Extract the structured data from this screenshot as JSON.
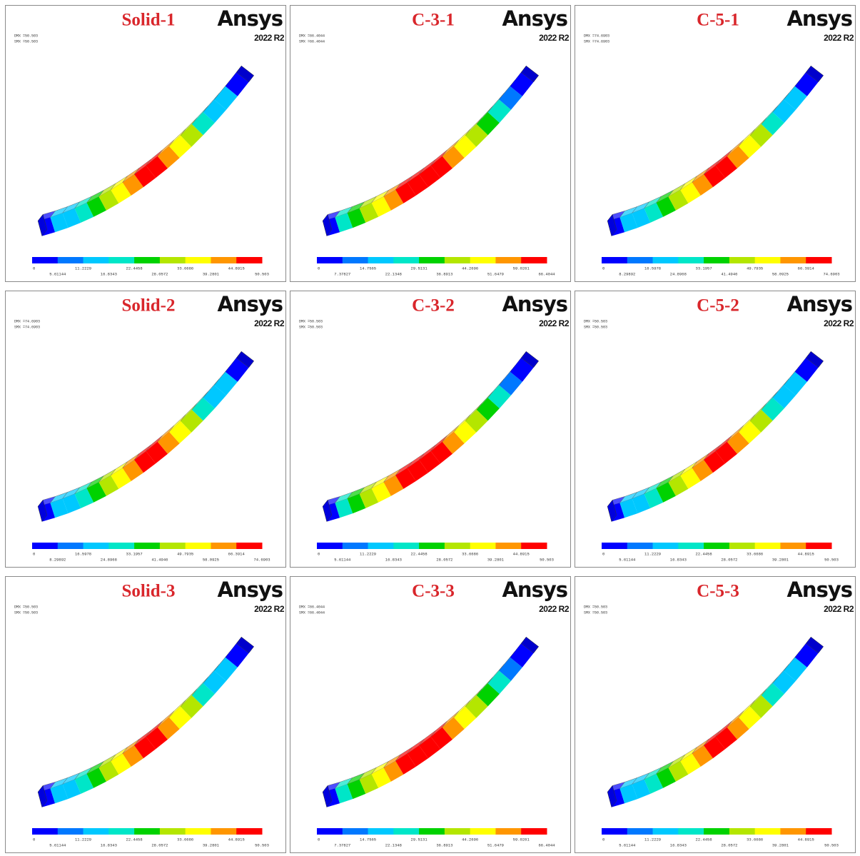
{
  "panels": [
    {
      "title": "Solid-1",
      "brand": "Ansys",
      "version": "2022 R2",
      "header": [
        "DMX =50.503",
        "SMX =50.503"
      ],
      "legend": [
        "0",
        "5.61144",
        "11.2229",
        "16.8343",
        "22.4458",
        "28.0572",
        "33.6686",
        "39.2801",
        "44.8915",
        "50.503"
      ]
    },
    {
      "title": "C-3-1",
      "brand": "Ansys",
      "version": "2022 R2",
      "header": [
        "DMX =66.4044",
        "SMX =66.4044"
      ],
      "legend": [
        "0",
        "7.37827",
        "14.7565",
        "22.1348",
        "29.5131",
        "36.8913",
        "44.2696",
        "51.6479",
        "59.0261",
        "66.4044"
      ]
    },
    {
      "title": "C-5-1",
      "brand": "Ansys",
      "version": "2022 R2",
      "header": [
        "DMX =74.6903",
        "SMX =74.6903"
      ],
      "legend": [
        "0",
        "8.29892",
        "16.5978",
        "24.8968",
        "33.1957",
        "41.4946",
        "49.7935",
        "58.0925",
        "66.3914",
        "74.6903"
      ]
    },
    {
      "title": "Solid-2",
      "brand": "Ansys",
      "version": "2022 R2",
      "header": [
        "DMX =74.6903",
        "SMX =74.6903"
      ],
      "legend": [
        "0",
        "8.29892",
        "16.5978",
        "24.8968",
        "33.1957",
        "41.4946",
        "49.7935",
        "58.0925",
        "66.3914",
        "74.6903"
      ]
    },
    {
      "title": "C-3-2",
      "brand": "Ansys",
      "version": "2022 R2",
      "header": [
        "DMX =50.503",
        "SMX =50.503"
      ],
      "legend": [
        "0",
        "5.61144",
        "11.2229",
        "16.8343",
        "22.4458",
        "28.0572",
        "33.6686",
        "39.2801",
        "44.8915",
        "50.503"
      ]
    },
    {
      "title": "C-5-2",
      "brand": "Ansys",
      "version": "2022 R2",
      "header": [
        "DMX =50.503",
        "SMX =50.503"
      ],
      "legend": [
        "0",
        "5.61144",
        "11.2229",
        "16.8343",
        "22.4458",
        "28.0572",
        "33.6686",
        "39.2801",
        "44.8915",
        "50.503"
      ]
    },
    {
      "title": "Solid-3",
      "brand": "Ansys",
      "version": "2022 R2",
      "header": [
        "DMX =50.503",
        "SMX =50.503"
      ],
      "legend": [
        "0",
        "5.61144",
        "11.2229",
        "16.8343",
        "22.4458",
        "28.0572",
        "33.6686",
        "39.2801",
        "44.8915",
        "50.503"
      ]
    },
    {
      "title": "C-3-3",
      "brand": "Ansys",
      "version": "2022 R2",
      "header": [
        "DMX =66.4044",
        "SMX =66.4044"
      ],
      "legend": [
        "0",
        "7.37827",
        "14.7565",
        "22.1348",
        "29.5131",
        "36.8913",
        "44.2696",
        "51.6479",
        "59.0261",
        "66.4044"
      ]
    },
    {
      "title": "C-5-3",
      "brand": "Ansys",
      "version": "2022 R2",
      "header": [
        "DMX =50.503",
        "SMX =50.503"
      ],
      "legend": [
        "0",
        "5.61144",
        "11.2229",
        "16.8343",
        "22.4458",
        "28.0572",
        "33.6686",
        "39.2801",
        "44.8915",
        "50.503"
      ]
    }
  ]
}
